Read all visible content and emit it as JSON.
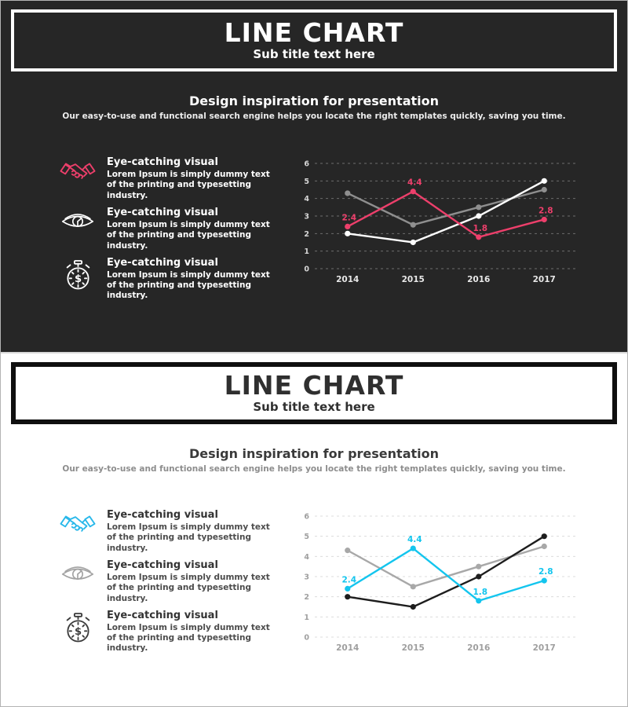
{
  "slides": [
    {
      "id": "dark",
      "theme": {
        "background": "#262626",
        "text": "#ffffff"
      },
      "title": "LINE CHART",
      "subtitle": "Sub title text here",
      "heading": "Design inspiration for presentation",
      "heading_sub": "Our easy-to-use and functional search engine helps you locate the right templates quickly, saving you time.",
      "features": [
        {
          "icon": "handshake-icon",
          "icon_color": "#ed3f6b",
          "title": "Eye-catching visual",
          "body": "Lorem Ipsum is simply dummy text of the printing and typesetting industry."
        },
        {
          "icon": "eye-icon",
          "icon_color": "#ffffff",
          "title": "Eye-catching visual",
          "body": "Lorem Ipsum is simply dummy text of the printing and typesetting industry."
        },
        {
          "icon": "stopwatch-icon",
          "icon_color": "#ffffff",
          "title": "Eye-catching visual",
          "body": "Lorem Ipsum is simply dummy text of the printing and typesetting industry."
        }
      ],
      "chart_theme": {
        "grid": "#6e6e6e",
        "ticks": "#d6d6d6",
        "xlabels": "#e8e8e8",
        "accent": "#ed3f6b",
        "gray": "#8f8f8f",
        "contrast": "#ffffff",
        "height": 168
      }
    },
    {
      "id": "light",
      "theme": {
        "background": "#ffffff",
        "text": "#2f2f2f"
      },
      "title": "LINE CHART",
      "subtitle": "Sub title text here",
      "heading": "Design inspiration for presentation",
      "heading_sub": "Our easy-to-use and functional search engine helps you locate the right templates quickly, saving you time.",
      "features": [
        {
          "icon": "handshake-icon",
          "icon_color": "#29b8ea",
          "title": "Eye-catching visual",
          "body": "Lorem Ipsum is simply dummy text of the printing and typesetting industry."
        },
        {
          "icon": "eye-icon",
          "icon_color": "#a3a3a3",
          "title": "Eye-catching visual",
          "body": "Lorem Ipsum is simply dummy text of the printing and typesetting industry."
        },
        {
          "icon": "stopwatch-icon",
          "icon_color": "#3c3c3c",
          "title": "Eye-catching visual",
          "body": "Lorem Ipsum is simply dummy text of the printing and typesetting industry."
        }
      ],
      "chart_theme": {
        "grid": "#dcdcdc",
        "ticks": "#9f9f9f",
        "xlabels": "#9f9f9f",
        "accent": "#13c5ee",
        "gray": "#a8a8a8",
        "contrast": "#1d1d1d",
        "height": 188
      }
    }
  ],
  "chart_data": {
    "type": "line",
    "categories": [
      "2014",
      "2015",
      "2016",
      "2017"
    ],
    "series": [
      {
        "name": "gray-series",
        "role": "gray",
        "values": [
          4.3,
          2.5,
          3.5,
          4.5
        ]
      },
      {
        "name": "contrast-series",
        "role": "contrast",
        "values": [
          2.0,
          1.5,
          3.0,
          5.0
        ]
      },
      {
        "name": "accent-series",
        "role": "accent",
        "values": [
          2.4,
          4.4,
          1.8,
          2.8
        ],
        "labels": [
          "2.4",
          "4.4",
          "1.8",
          "2.8"
        ]
      }
    ],
    "ylim": [
      0,
      6
    ],
    "yticks": [
      0,
      1,
      2,
      3,
      4,
      5,
      6
    ],
    "grid": "horizontal-dashed",
    "legend": "none"
  }
}
